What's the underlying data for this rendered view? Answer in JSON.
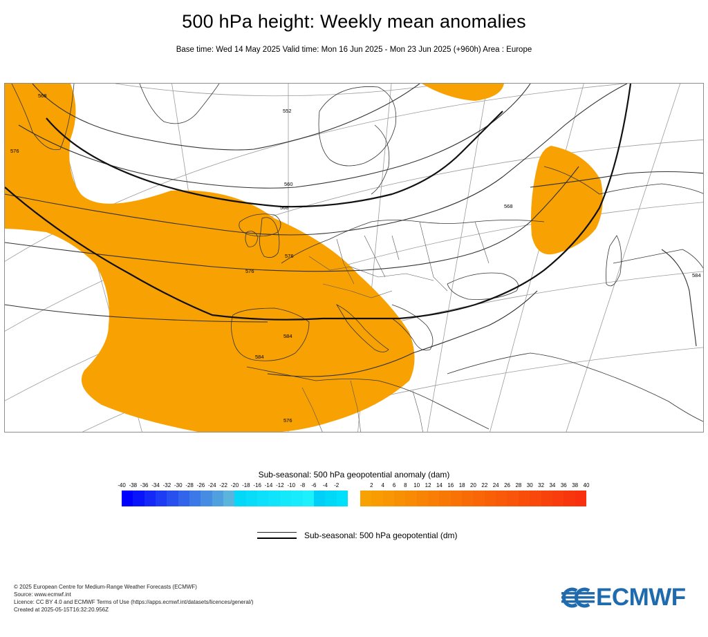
{
  "header": {
    "title": "500 hPa height: Weekly mean anomalies",
    "subtitle": "Base time: Wed 14 May 2025 Valid time: Mon 16 Jun 2025 - Mon 23 Jun 2025 (+960h) Area : Europe"
  },
  "map": {
    "area": "Europe",
    "anomaly_fill_color": "#f8a102",
    "contour_labels": {
      "c552": "552",
      "c560": "560",
      "c568": "568",
      "c576": "576",
      "c584": "584",
      "c576b": "576",
      "c568b": "568",
      "c584b": "584",
      "c576c": "576",
      "c568c": "568",
      "c584d": "584",
      "c576e": "576"
    }
  },
  "legend": {
    "anomaly_title": "Sub-seasonal: 500 hPa geopotential anomaly (dam)",
    "ticks": [
      "-40",
      "-38",
      "-36",
      "-34",
      "-32",
      "-30",
      "-28",
      "-26",
      "-24",
      "-22",
      "-20",
      "-18",
      "-16",
      "-14",
      "-12",
      "-10",
      "-8",
      "-6",
      "-4",
      "-2",
      "2",
      "4",
      "6",
      "8",
      "10",
      "12",
      "14",
      "16",
      "18",
      "20",
      "22",
      "24",
      "26",
      "28",
      "30",
      "32",
      "34",
      "36",
      "38",
      "40"
    ],
    "negative_colors": [
      "#0000ff",
      "#0a14fb",
      "#1428f7",
      "#1e3cf3",
      "#2850ef",
      "#3264eb",
      "#3c78e7",
      "#468ce3",
      "#50a0df",
      "#5ab4db",
      "#04d8f8",
      "#08dcf9",
      "#0ce0fa",
      "#10e4fa",
      "#14e8fb",
      "#18ecfc",
      "#1cf0fc",
      "#00d0f7",
      "#00d8f8",
      "#00e0fa"
    ],
    "positive_colors": [
      "#f8a102",
      "#f89c02",
      "#f89603",
      "#f89003",
      "#f88a04",
      "#f88405",
      "#f87e05",
      "#f87806",
      "#f87206",
      "#f86c07",
      "#f86608",
      "#f86008",
      "#f85a09",
      "#f8540a",
      "#f84e0a",
      "#f8480b",
      "#f8420c",
      "#f83c0c",
      "#f8360d",
      "#f8300e"
    ],
    "contour_title": "Sub-seasonal: 500 hPa geopotential (dm)"
  },
  "footer": {
    "line1": "© 2025 European Centre for Medium-Range Weather Forecasts (ECMWF)",
    "line2": "Source: www.ecmwf.int",
    "line3": "Licence: CC BY 4.0 and ECMWF Terms of Use (https://apps.ecmwf.int/datasets/licences/general/)",
    "line4": "Created at 2025-05-15T16:32:20.956Z"
  },
  "logo": {
    "text": "ECMWF",
    "color": "#1f6bad"
  }
}
